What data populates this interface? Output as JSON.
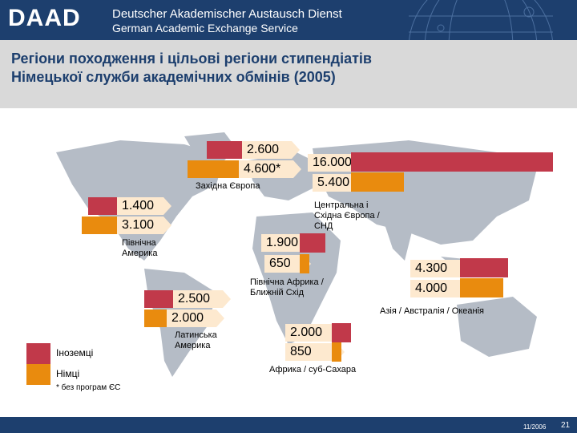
{
  "header": {
    "logo": "DAAD",
    "line1": "Deutscher Akademischer Austausch Dienst",
    "line2": "German Academic Exchange Service"
  },
  "slide": {
    "title_line1": "Регіони походження і цільові регіони стипендіатів",
    "title_line2": "Німецької служби академічних обмінів (2005)"
  },
  "regions": {
    "western_europe": {
      "label": "Західна Європа",
      "foreigners": "2.600",
      "germans": "4.600*"
    },
    "central_eastern_europe": {
      "label": "Центральна і Східна Європа / СНД",
      "foreigners": "16.000",
      "germans": "5.400"
    },
    "north_america": {
      "label": "Північна Америка",
      "foreigners": "1.400",
      "germans": "3.100"
    },
    "mena": {
      "label": "Північна Африка / Ближній Схід",
      "foreigners": "1.900",
      "germans": "650"
    },
    "asia_pacific": {
      "label": "Азія / Австралія / Океанія",
      "foreigners": "4.300",
      "germans": "4.000"
    },
    "latin_america": {
      "label": "Латинська Америка",
      "foreigners": "2.500",
      "germans": "2.000"
    },
    "sub_saharan_africa": {
      "label": "Африка / суб-Сахара",
      "foreigners": "2.000",
      "germans": "850"
    }
  },
  "legend": {
    "foreigners": "Іноземці",
    "germans": "Німці"
  },
  "footnote": "* без програм ЄС",
  "footer": {
    "date": "11/2006",
    "page": "21"
  },
  "colors": {
    "foreigners": "#c1394a",
    "germans": "#e98b0e",
    "brand": "#1d3f6e"
  }
}
